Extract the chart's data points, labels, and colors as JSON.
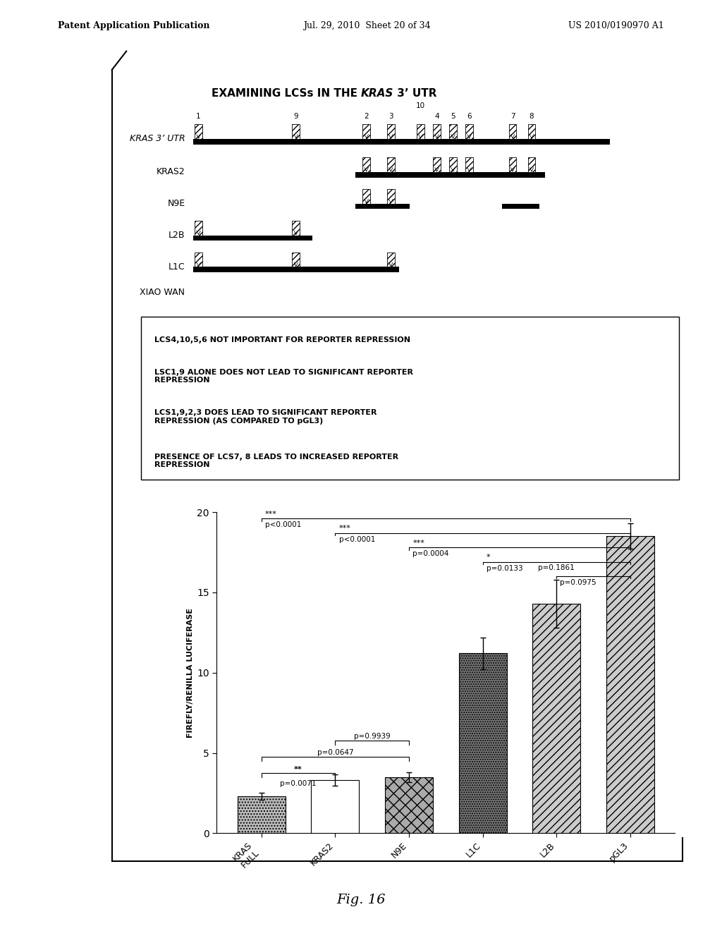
{
  "header_left": "Patent Application Publication",
  "header_mid": "Jul. 29, 2010  Sheet 20 of 34",
  "header_right": "US 2010/0190970 A1",
  "bar_labels": [
    "KRAS\nFULL",
    "KRAS2",
    "N9E",
    "L1C",
    "L2B",
    "pGL3"
  ],
  "bar_values": [
    2.3,
    3.3,
    3.5,
    11.2,
    14.3,
    18.5
  ],
  "bar_errors": [
    0.2,
    0.35,
    0.3,
    1.0,
    1.5,
    0.8
  ],
  "ylabel": "FIREFLY/RENILLA LUCIFERASE",
  "ylim": [
    0,
    20
  ],
  "yticks": [
    0,
    5,
    10,
    15,
    20
  ],
  "text_box_lines": [
    "LCS4,10,5,6 NOT IMPORTANT FOR REPORTER REPRESSION",
    "LSC1,9 ALONE DOES NOT LEAD TO SIGNIFICANT REPORTER\nREPRESSION",
    "LCS1,9,2,3 DOES LEAD TO SIGNIFICANT REPORTER\nREPRESSION (AS COMPARED TO pGL3)",
    "PRESENCE OF LCS7, 8 LEADS TO INCREASED REPORTER\nREPRESSION"
  ],
  "fig_label": "Fig. 16"
}
